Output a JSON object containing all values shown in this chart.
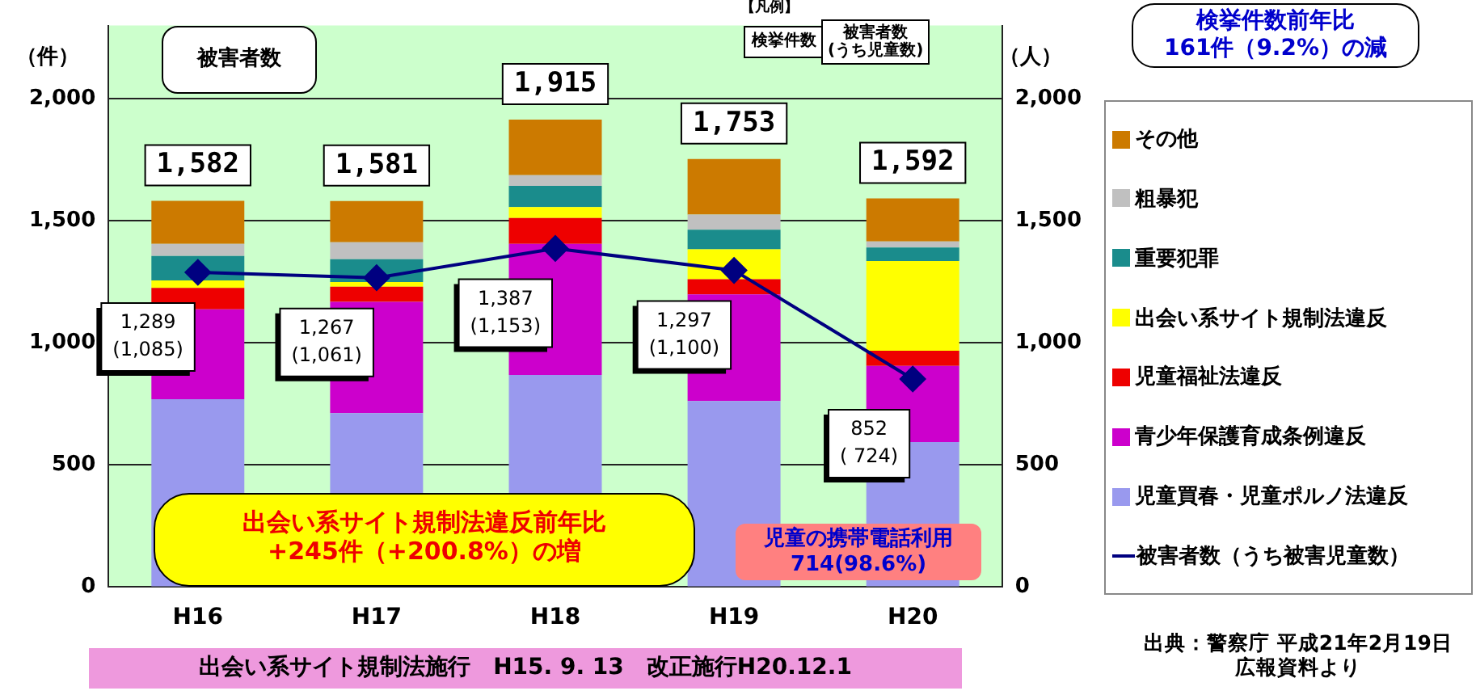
{
  "chart_data": {
    "type": "bar",
    "stacked": true,
    "categories": [
      "H16",
      "H17",
      "H18",
      "H19",
      "H20"
    ],
    "ylabel": "（件）",
    "y2label": "（人）",
    "ylim": [
      0,
      2300
    ],
    "yticks": [
      0,
      500,
      {
        "value": 1000,
        "label": "1,000"
      },
      {
        "value": 1500,
        "label": "1,500"
      },
      {
        "value": 2000,
        "label": "2,000"
      }
    ],
    "y2lim": [
      0,
      2300
    ],
    "y2ticks": [
      0,
      500,
      {
        "value": 1000,
        "label": "1,000"
      },
      {
        "value": 1500,
        "label": "1,500"
      },
      {
        "value": 2000,
        "label": "2,000"
      }
    ],
    "grid": "y",
    "legend": "right",
    "marker": "diamond",
    "line_style": "solid",
    "series": [
      {
        "name": "児童買春・児童ポルノ法違反",
        "color": "#9999ee",
        "values": [
          769,
          712,
          869,
          762,
          594
        ]
      },
      {
        "name": "青少年保護育成条例違反",
        "color": "#cc00cc",
        "values": [
          369,
          456,
          537,
          437,
          312
        ]
      },
      {
        "name": "児童福祉法違反",
        "color": "#ee0000",
        "values": [
          87,
          62,
          106,
          62,
          62
        ]
      },
      {
        "name": "出会い系サイト規制法違反",
        "color": "#ffff00",
        "values": [
          31,
          19,
          44,
          122,
          367
        ]
      },
      {
        "name": "重要犯罪",
        "color": "#1a8c8c",
        "values": [
          100,
          94,
          87,
          81,
          56
        ]
      },
      {
        "name": "粗暴犯",
        "color": "#c0c0c0",
        "values": [
          50,
          69,
          44,
          62,
          25
        ]
      },
      {
        "name": "その他",
        "color": "#cc7a00",
        "values": [
          176,
          169,
          228,
          227,
          176
        ]
      },
      {
        "name": "被害者数（うち被害児童数）",
        "type": "line",
        "axis": "y2",
        "color": "#000080",
        "values": [
          1289,
          1267,
          1387,
          1297,
          852
        ],
        "value_labels": [
          "1,289\n(1,085)",
          "1,267\n(1,061)",
          "1,387\n(1,153)",
          "1,297\n(1,100)",
          "852\n( 724)"
        ]
      }
    ],
    "totals": [
      "1,582",
      "1,581",
      "1,915",
      "1,753",
      "1,592"
    ],
    "annotations": [
      "【凡例】",
      "検挙件数",
      "被害者数\n(うち児童数)",
      "被害者数",
      "検挙件数前年比\n161件（9.2%）の減",
      "出会い系サイト規制法違反前年比\n+245件（+200.8%）の増",
      "児童の携帯電話利用\n714(98.6%)",
      "出会い系サイト規制法施行　H15. 9. 13　改正施行H20.12.1",
      "出典：警察庁 平成21年2月19日広報資料より"
    ]
  }
}
